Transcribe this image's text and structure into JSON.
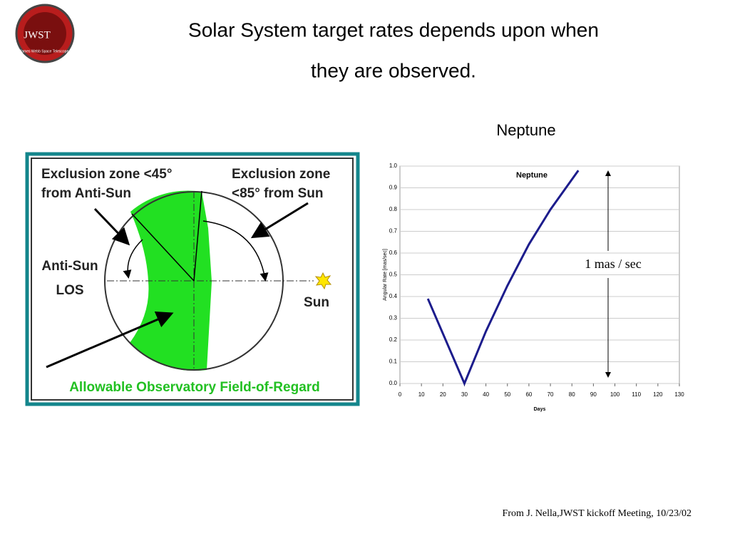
{
  "header": {
    "title_lines": [
      "Solar System target rates depends upon when",
      "they are observed."
    ],
    "logo": {
      "text": "JWST",
      "caption": "James Webb Space Telescope"
    }
  },
  "diagram": {
    "labels": {
      "anti_sun_zone": [
        "Exclusion zone <45°",
        "from Anti-Sun"
      ],
      "sun_zone": [
        "Exclusion zone",
        "<85° from Sun"
      ],
      "anti_sun_los": [
        "Anti-Sun",
        "LOS"
      ],
      "sun": "Sun",
      "field_of_regard": "Allowable Observatory Field-of-Regard"
    }
  },
  "chart_data": {
    "type": "line",
    "title": "Neptune",
    "x": [
      13,
      30,
      40,
      50,
      60,
      70,
      83
    ],
    "series": [
      {
        "name": "Neptune",
        "color": "#1c1c8c",
        "values": [
          0.39,
          0.0,
          0.24,
          0.45,
          0.64,
          0.8,
          0.98
        ]
      }
    ],
    "xlabel": "Days",
    "ylabel": "Angular Rate [mas/sec]",
    "xlim": [
      0,
      130
    ],
    "xticks": [
      0,
      10,
      20,
      30,
      40,
      50,
      60,
      70,
      80,
      90,
      100,
      110,
      120,
      130
    ],
    "ylim": [
      0,
      1
    ],
    "yticks": [
      {
        "value": 0,
        "label": "0.0"
      },
      0.1,
      0.2,
      0.3,
      0.4,
      0.5,
      0.6,
      0.7,
      0.8,
      0.9,
      {
        "value": 1,
        "label": "1.0"
      }
    ],
    "grid": true,
    "annotation": "1 mas / sec"
  },
  "footer": "From J. Nella,JWST kickoff Meeting, 10/23/02"
}
